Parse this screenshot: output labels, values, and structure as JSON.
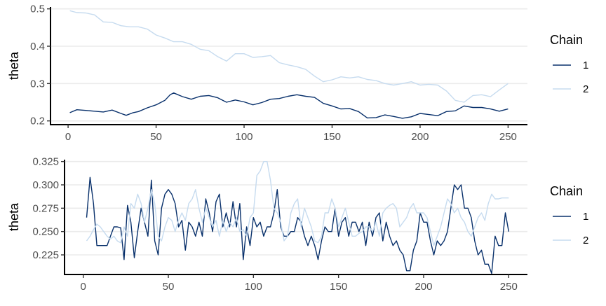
{
  "chart_data": [
    {
      "type": "line",
      "ylabel": "theta",
      "xlabel": "",
      "xlim": [
        -10,
        261
      ],
      "ylim": [
        0.19,
        0.505
      ],
      "x_ticks": [
        0,
        50,
        100,
        150,
        200,
        250
      ],
      "x_tick_labels": [
        "0",
        "50",
        "100",
        "150",
        "200",
        "250"
      ],
      "y_ticks": [
        0.2,
        0.3,
        0.4,
        0.5
      ],
      "y_tick_labels": [
        "0.2",
        "0.3",
        "0.4",
        "0.5"
      ],
      "grid": "horizontal major",
      "legend": {
        "title": "Chain",
        "placement": "right"
      },
      "series": [
        {
          "name": "1",
          "color": "#08306b",
          "x": [
            1,
            5,
            10,
            15,
            20,
            25,
            30,
            33,
            37,
            40,
            45,
            50,
            55,
            58,
            60,
            65,
            70,
            75,
            80,
            85,
            90,
            95,
            100,
            105,
            110,
            115,
            120,
            125,
            130,
            135,
            140,
            145,
            150,
            155,
            160,
            165,
            170,
            175,
            180,
            185,
            190,
            195,
            200,
            205,
            210,
            215,
            220,
            225,
            230,
            235,
            240,
            245,
            250
          ],
          "values": [
            0.222,
            0.23,
            0.228,
            0.226,
            0.224,
            0.229,
            0.22,
            0.215,
            0.222,
            0.225,
            0.235,
            0.243,
            0.255,
            0.27,
            0.275,
            0.265,
            0.258,
            0.266,
            0.268,
            0.262,
            0.25,
            0.256,
            0.251,
            0.243,
            0.249,
            0.258,
            0.26,
            0.266,
            0.27,
            0.266,
            0.263,
            0.247,
            0.24,
            0.232,
            0.233,
            0.225,
            0.208,
            0.209,
            0.216,
            0.212,
            0.207,
            0.211,
            0.22,
            0.217,
            0.214,
            0.225,
            0.227,
            0.24,
            0.236,
            0.236,
            0.232,
            0.226,
            0.232
          ]
        },
        {
          "name": "2",
          "color": "#c6dbef",
          "x": [
            1,
            5,
            10,
            15,
            20,
            25,
            30,
            35,
            40,
            45,
            50,
            55,
            60,
            65,
            70,
            75,
            80,
            85,
            90,
            95,
            100,
            105,
            110,
            115,
            120,
            125,
            130,
            135,
            140,
            145,
            150,
            155,
            160,
            165,
            170,
            175,
            180,
            185,
            190,
            195,
            200,
            205,
            210,
            215,
            220,
            225,
            230,
            235,
            240,
            245,
            250
          ],
          "values": [
            0.495,
            0.49,
            0.489,
            0.484,
            0.465,
            0.464,
            0.455,
            0.452,
            0.452,
            0.446,
            0.43,
            0.422,
            0.412,
            0.412,
            0.405,
            0.392,
            0.388,
            0.372,
            0.36,
            0.38,
            0.38,
            0.37,
            0.372,
            0.375,
            0.356,
            0.35,
            0.345,
            0.338,
            0.32,
            0.305,
            0.31,
            0.318,
            0.315,
            0.318,
            0.311,
            0.308,
            0.3,
            0.296,
            0.3,
            0.305,
            0.296,
            0.298,
            0.296,
            0.28,
            0.255,
            0.25,
            0.268,
            0.27,
            0.265,
            0.283,
            0.3
          ]
        }
      ]
    },
    {
      "type": "line",
      "ylabel": "theta",
      "xlabel": "",
      "xlim": [
        -11,
        261
      ],
      "ylim": [
        0.204,
        0.327
      ],
      "x_ticks": [
        0,
        50,
        100,
        150,
        200,
        250
      ],
      "x_tick_labels": [
        "0",
        "50",
        "100",
        "150",
        "200",
        "250"
      ],
      "y_ticks": [
        0.225,
        0.25,
        0.275,
        0.3,
        0.325
      ],
      "y_tick_labels": [
        "0.225",
        "0.250",
        "0.275",
        "0.300",
        "0.325"
      ],
      "grid": "horizontal major",
      "legend": {
        "title": "Chain",
        "placement": "right"
      },
      "series": [
        {
          "name": "1",
          "color": "#08306b",
          "x": [
            2,
            4,
            6,
            8,
            10,
            12,
            14,
            16,
            18,
            20,
            22,
            24,
            26,
            28,
            30,
            32,
            34,
            36,
            38,
            40,
            42,
            44,
            46,
            48,
            50,
            52,
            54,
            56,
            58,
            60,
            62,
            64,
            66,
            68,
            70,
            72,
            74,
            76,
            78,
            80,
            82,
            84,
            86,
            88,
            90,
            92,
            94,
            96,
            98,
            100,
            102,
            104,
            106,
            108,
            110,
            112,
            114,
            116,
            118,
            120,
            122,
            124,
            126,
            128,
            130,
            132,
            134,
            136,
            138,
            140,
            142,
            144,
            146,
            148,
            150,
            152,
            154,
            156,
            158,
            160,
            162,
            164,
            166,
            168,
            170,
            172,
            174,
            176,
            178,
            180,
            182,
            184,
            186,
            188,
            190,
            192,
            194,
            196,
            198,
            200,
            202,
            204,
            206,
            208,
            210,
            212,
            214,
            216,
            218,
            220,
            222,
            224,
            226,
            228,
            230,
            232,
            234,
            236,
            238,
            240,
            242,
            244,
            246,
            248,
            250
          ],
          "values": [
            0.265,
            0.308,
            0.28,
            0.235,
            0.235,
            0.235,
            0.235,
            0.245,
            0.255,
            0.255,
            0.254,
            0.22,
            0.278,
            0.26,
            0.222,
            0.25,
            0.275,
            0.26,
            0.245,
            0.305,
            0.24,
            0.225,
            0.275,
            0.29,
            0.295,
            0.29,
            0.28,
            0.255,
            0.262,
            0.23,
            0.26,
            0.255,
            0.245,
            0.26,
            0.245,
            0.285,
            0.27,
            0.25,
            0.282,
            0.29,
            0.255,
            0.27,
            0.255,
            0.282,
            0.255,
            0.28,
            0.22,
            0.255,
            0.235,
            0.265,
            0.255,
            0.26,
            0.245,
            0.255,
            0.255,
            0.27,
            0.295,
            0.255,
            0.245,
            0.245,
            0.25,
            0.25,
            0.265,
            0.26,
            0.245,
            0.235,
            0.245,
            0.235,
            0.22,
            0.24,
            0.255,
            0.25,
            0.25,
            0.275,
            0.245,
            0.26,
            0.265,
            0.245,
            0.26,
            0.26,
            0.25,
            0.26,
            0.235,
            0.26,
            0.245,
            0.265,
            0.27,
            0.24,
            0.26,
            0.245,
            0.235,
            0.24,
            0.23,
            0.225,
            0.208,
            0.208,
            0.23,
            0.24,
            0.27,
            0.26,
            0.26,
            0.24,
            0.225,
            0.24,
            0.235,
            0.24,
            0.25,
            0.275,
            0.3,
            0.295,
            0.3,
            0.275,
            0.275,
            0.265,
            0.24,
            0.225,
            0.23,
            0.215,
            0.215,
            0.205,
            0.245,
            0.235,
            0.235,
            0.27,
            0.25
          ],
          "x_extra": []
        },
        {
          "name": "2",
          "color": "#c6dbef",
          "x": [
            2,
            4,
            6,
            8,
            10,
            12,
            14,
            16,
            18,
            20,
            22,
            24,
            26,
            28,
            30,
            32,
            34,
            36,
            38,
            40,
            42,
            44,
            46,
            48,
            50,
            52,
            54,
            56,
            58,
            60,
            62,
            64,
            66,
            68,
            70,
            72,
            74,
            76,
            78,
            80,
            82,
            84,
            86,
            88,
            90,
            92,
            94,
            96,
            98,
            100,
            102,
            104,
            106,
            108,
            110,
            112,
            114,
            116,
            118,
            120,
            122,
            124,
            126,
            128,
            130,
            132,
            134,
            136,
            138,
            140,
            142,
            144,
            146,
            148,
            150,
            152,
            154,
            156,
            158,
            160,
            162,
            164,
            166,
            168,
            170,
            172,
            174,
            176,
            178,
            180,
            182,
            184,
            186,
            188,
            190,
            192,
            194,
            196,
            198,
            200,
            202,
            204,
            206,
            208,
            210,
            212,
            214,
            216,
            218,
            220,
            222,
            224,
            226,
            228,
            230,
            232,
            234,
            236,
            238,
            240,
            242,
            244,
            246,
            248,
            250
          ],
          "values": [
            0.24,
            0.245,
            0.252,
            0.258,
            0.255,
            0.25,
            0.245,
            0.242,
            0.245,
            0.24,
            0.238,
            0.255,
            0.245,
            0.28,
            0.275,
            0.29,
            0.28,
            0.26,
            0.275,
            0.295,
            0.28,
            0.245,
            0.24,
            0.255,
            0.265,
            0.262,
            0.25,
            0.262,
            0.27,
            0.262,
            0.28,
            0.285,
            0.295,
            0.275,
            0.26,
            0.275,
            0.265,
            0.255,
            0.262,
            0.245,
            0.262,
            0.25,
            0.26,
            0.255,
            0.265,
            0.25,
            0.252,
            0.245,
            0.265,
            0.27,
            0.31,
            0.315,
            0.325,
            0.325,
            0.305,
            0.275,
            0.27,
            0.26,
            0.24,
            0.245,
            0.27,
            0.28,
            0.285,
            0.255,
            0.275,
            0.265,
            0.255,
            0.24,
            0.238,
            0.245,
            0.27,
            0.27,
            0.285,
            0.275,
            0.255,
            0.265,
            0.275,
            0.26,
            0.245,
            0.245,
            0.248,
            0.25,
            0.255,
            0.255,
            0.25,
            0.26,
            0.245,
            0.27,
            0.275,
            0.278,
            0.28,
            0.275,
            0.255,
            0.26,
            0.265,
            0.275,
            0.28,
            0.27,
            0.27,
            0.27,
            0.265,
            0.25,
            0.235,
            0.245,
            0.255,
            0.27,
            0.285,
            0.28,
            0.27,
            0.275,
            0.265,
            0.26,
            0.25,
            0.245,
            0.255,
            0.265,
            0.27,
            0.262,
            0.28,
            0.29,
            0.285,
            0.285,
            0.286,
            0.286,
            0.286
          ]
        }
      ]
    }
  ]
}
